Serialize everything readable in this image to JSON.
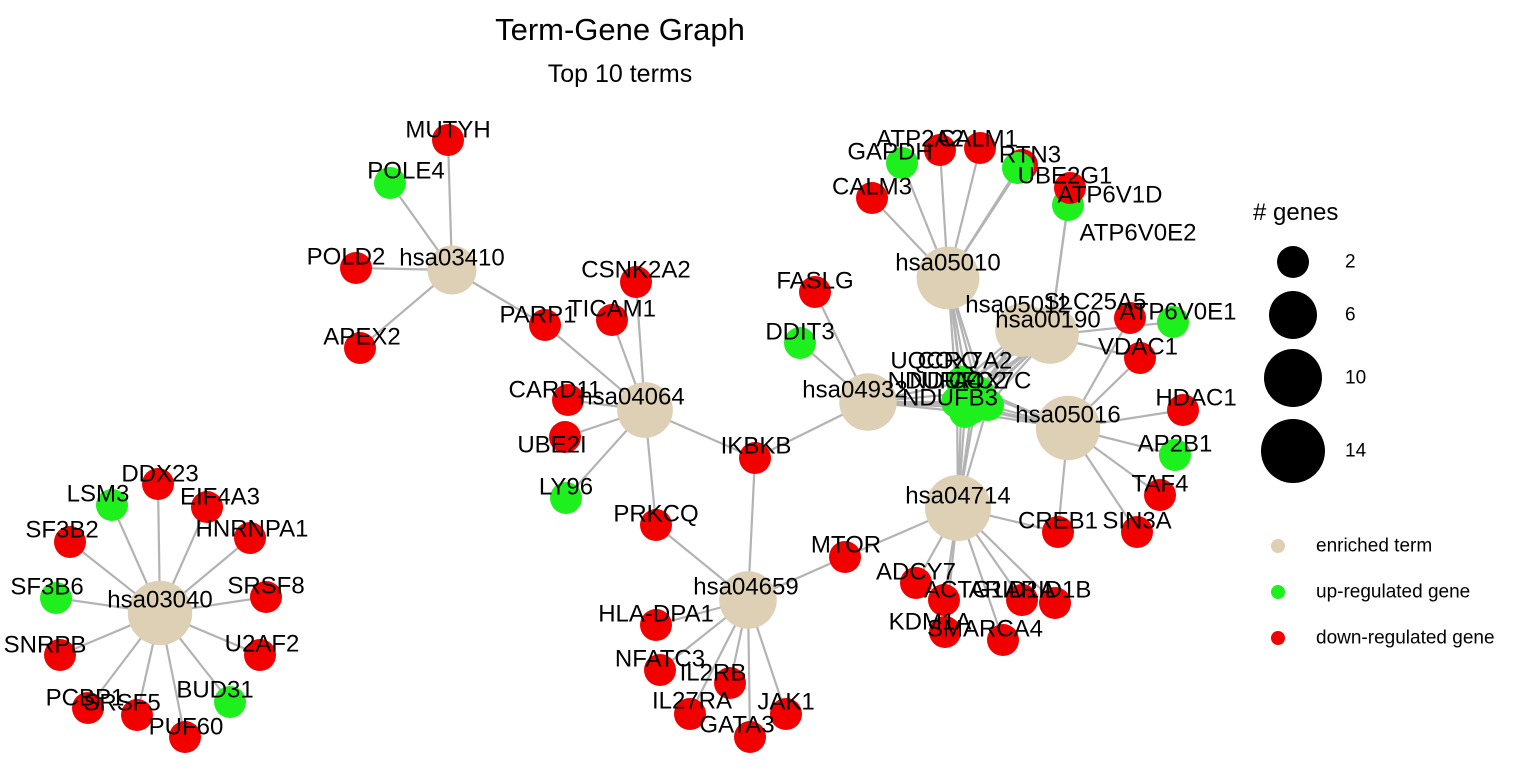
{
  "header": {
    "title": "Term-Gene Graph",
    "subtitle": "Top 10 terms"
  },
  "colors": {
    "term": "#DDD0B5",
    "up": "#1EF01E",
    "down": "#F20000",
    "edge": "#B3B3B3"
  },
  "legend": {
    "size_title": "# genes",
    "sizes": [
      {
        "label": "2",
        "value": 2
      },
      {
        "label": "6",
        "value": 6
      },
      {
        "label": "10",
        "value": 10
      },
      {
        "label": "14",
        "value": 14
      }
    ],
    "color_items": [
      {
        "label": "enriched term",
        "kind": "term"
      },
      {
        "label": "up-regulated gene",
        "kind": "up"
      },
      {
        "label": "down-regulated gene",
        "kind": "down"
      }
    ]
  },
  "terms": [
    {
      "id": "hsa03410",
      "genes": [
        "MUTYH",
        "POLE4",
        "POLD2",
        "APEX2",
        "PARP1"
      ]
    },
    {
      "id": "hsa04064",
      "genes": [
        "PARP1",
        "TICAM1",
        "CSNK2A2",
        "CARD11",
        "UBE2I",
        "LY96",
        "PRKCQ",
        "IKBKB"
      ]
    },
    {
      "id": "hsa04659",
      "genes": [
        "PRKCQ",
        "IKBKB",
        "MTOR",
        "HLA-DPA1",
        "NFATC3",
        "IL2RB",
        "IL27RA",
        "JAK1",
        "GATA3"
      ]
    },
    {
      "id": "hsa04932",
      "genes": [
        "FASLG",
        "DDIT3",
        "IKBKB",
        "UQCRQ",
        "COX7A2",
        "NDUFA4",
        "NDUFC2",
        "COX7C",
        "NDUFB3"
      ]
    },
    {
      "id": "hsa05010",
      "genes": [
        "CALM3",
        "GAPDH",
        "ATP2A2",
        "CALM1",
        "RTN3",
        "UBE2G1",
        "UQCRQ",
        "COX7A2",
        "NDUFA4",
        "NDUFC2",
        "COX7C",
        "NDUFB3"
      ]
    },
    {
      "id": "hsa05012",
      "genes": [
        "UQCRQ",
        "COX7A2",
        "NDUFA4",
        "NDUFC2",
        "COX7C",
        "NDUFB3",
        "VDAC1"
      ]
    },
    {
      "id": "hsa00190",
      "genes": [
        "ATP6V1D",
        "ATP6V0E2",
        "ATP6V0E1",
        "UQCRQ",
        "COX7A2",
        "NDUFA4",
        "NDUFC2",
        "COX7C",
        "NDUFB3"
      ]
    },
    {
      "id": "hsa05016",
      "genes": [
        "SLC25A5",
        "VDAC1",
        "HDAC1",
        "AP2B1",
        "TAF4",
        "SIN3A",
        "CREB1",
        "UQCRQ",
        "COX7A2",
        "NDUFA4",
        "NDUFC2",
        "COX7C",
        "NDUFB3"
      ]
    },
    {
      "id": "hsa04714",
      "genes": [
        "MTOR",
        "ADCY7",
        "ACTG1",
        "ARID1A",
        "ARID1B",
        "KDM1A",
        "SMARCA4",
        "CREB1",
        "UQCRQ",
        "COX7A2",
        "NDUFA4",
        "NDUFC2",
        "COX7C",
        "NDUFB3"
      ]
    },
    {
      "id": "hsa03040",
      "genes": [
        "DDX23",
        "LSM3",
        "EIF4A3",
        "SF3B2",
        "HNRNPA1",
        "SF3B6",
        "SRSF8",
        "SNRPB",
        "U2AF2",
        "PCBP1",
        "SRSF5",
        "BUD31",
        "PUF60"
      ]
    }
  ],
  "node_labels": {
    "hsa03410": "hsa03410",
    "hsa04064": "hsa04064",
    "hsa04659": "hsa04659",
    "hsa04932": "hsa04932",
    "hsa05010": "hsa05010",
    "hsa05012": "hsa05012",
    "hsa00190": "hsa00190",
    "hsa05016": "hsa05016",
    "hsa04714": "hsa04714",
    "hsa03040": "hsa03040",
    "MUTYH": "MUTYH",
    "POLE4": "POLE4",
    "POLD2": "POLD2",
    "APEX2": "APEX2",
    "PARP1": "PARP1",
    "TICAM1": "TICAM1",
    "CSNK2A2": "CSNK2A2",
    "CARD11": "CARD11",
    "UBE2I": "UBE2I",
    "LY96": "LY96",
    "PRKCQ": "PRKCQ",
    "IKBKB": "IKBKB",
    "MTOR": "MTOR",
    "HLA-DPA1": "HLA-DPA1",
    "NFATC3": "NFATC3",
    "IL2RB": "IL2RB",
    "IL27RA": "IL27RA",
    "JAK1": "JAK1",
    "GATA3": "GATA3",
    "FASLG": "FASLG",
    "DDIT3": "DDIT3",
    "UQCRQ": "UQCRQ",
    "COX7A2": "COX7A2",
    "NDUFA4": "NDUFA4",
    "NDUFC2": "NDUFC2",
    "COX7C": "COX7C",
    "NDUFB3": "NDUFB3",
    "CALM3": "CALM3",
    "GAPDH": "GAPDH",
    "ATP2A2": "ATP2A2",
    "CALM1": "CALM1",
    "RTN3": "RTN3",
    "UBE2G1": "UBE2G1",
    "ATP6V1D": "ATP6V1D",
    "ATP6V0E2": "ATP6V0E2",
    "ATP6V0E1": "ATP6V0E1",
    "SLC25A5": "SLC25A5",
    "VDAC1": "VDAC1",
    "HDAC1": "HDAC1",
    "AP2B1": "AP2B1",
    "TAF4": "TAF4",
    "SIN3A": "SIN3A",
    "CREB1": "CREB1",
    "ADCY7": "ADCY7",
    "ACTG1": "ACTG1",
    "ARID1A": "ARID1A",
    "ARID1B": "ARID1B",
    "KDM1A": "KDM1A",
    "SMARCA4": "SMARCA4",
    "DDX23": "DDX23",
    "LSM3": "LSM3",
    "EIF4A3": "EIF4A3",
    "SF3B2": "SF3B2",
    "HNRNPA1": "HNRNPA1",
    "SF3B6": "SF3B6",
    "SRSF8": "SRSF8",
    "SNRPB": "SNRPB",
    "U2AF2": "U2AF2",
    "PCBP1": "PCBP1",
    "SRSF5": "SRSF5",
    "BUD31": "BUD31",
    "PUF60": "PUF60"
  },
  "regulation": {
    "up": [
      "POLE4",
      "LY96",
      "DDIT3",
      "GAPDH",
      "UBE2G1",
      "ATP6V1D",
      "ATP6V0E1",
      "AP2B1",
      "LSM3",
      "SF3B6",
      "BUD31",
      "UQCRQ",
      "COX7A2",
      "NDUFA4",
      "NDUFC2",
      "COX7C",
      "NDUFB3"
    ],
    "down": [
      "MUTYH",
      "POLD2",
      "APEX2",
      "PARP1",
      "TICAM1",
      "CSNK2A2",
      "CARD11",
      "UBE2I",
      "PRKCQ",
      "IKBKB",
      "MTOR",
      "HLA-DPA1",
      "NFATC3",
      "IL2RB",
      "IL27RA",
      "JAK1",
      "GATA3",
      "FASLG",
      "CALM3",
      "ATP2A2",
      "CALM1",
      "RTN3",
      "ATP6V0E2",
      "SLC25A5",
      "VDAC1",
      "HDAC1",
      "TAF4",
      "SIN3A",
      "CREB1",
      "ADCY7",
      "ACTG1",
      "ARID1A",
      "ARID1B",
      "KDM1A",
      "SMARCA4",
      "DDX23",
      "EIF4A3",
      "SF3B2",
      "HNRNPA1",
      "SRSF8",
      "SNRPB",
      "U2AF2",
      "PCBP1",
      "SRSF5",
      "PUF60"
    ]
  }
}
